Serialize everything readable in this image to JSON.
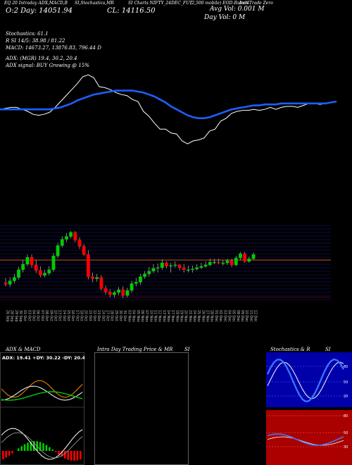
{
  "header": {
    "col1": "EQ 20 Intraday ADX,MACD,B",
    "col2": "SI,Stochastics,MR",
    "col3": "SI Charts NIFTY_24DEC_FUT",
    "col4": "(2,500 mobile) EOD-Ruben",
    "col5": "Ind4Trade Zero",
    "ltp_label": "Avg Vol: 0.001 M",
    "ltp_value": "CL: 14116.50",
    "open_line": "O:2 Day: 14051.94",
    "day_vol": "Day Vol: 0   M"
  },
  "indicators": {
    "stoch": "Stochastics: 61.1",
    "rsi": "R                        SI 14/5: 38.98  / 81.22",
    "macd": "MACD: 14673.27,  13876.83,  796.44   D",
    "adx": "ADX:                              (MGR) 19.4,  30.2,  20.4",
    "adx_signal": "ADX  signal:                          BUY Growing @ 15%"
  },
  "colors": {
    "up": "#00cc00",
    "down": "#ff0000",
    "ma": "#1e5eff",
    "price_line": "#ffffff",
    "grid": "#1a1a8a"
  },
  "chart_data": [
    {
      "type": "line",
      "title": "",
      "series": [
        {
          "values": [
            62,
            63,
            64,
            64,
            62,
            60,
            57,
            56,
            57,
            59,
            64,
            70,
            76,
            82,
            88,
            95,
            97,
            94,
            85,
            84,
            82,
            79,
            77,
            76,
            72,
            70,
            60,
            55,
            48,
            42,
            42,
            38,
            37,
            30,
            27,
            30,
            31,
            33,
            40,
            42,
            50,
            53,
            58,
            60,
            61,
            61,
            62,
            61,
            62,
            64,
            62,
            64,
            65,
            65,
            64,
            66,
            68,
            68,
            67,
            68,
            69,
            70
          ]
        },
        {
          "values": [
            62,
            62,
            62,
            62,
            62,
            62,
            62,
            62,
            62,
            62,
            63,
            64,
            66,
            68,
            71,
            73,
            75,
            77,
            78,
            79,
            80,
            81,
            81,
            81,
            81,
            80,
            79,
            77,
            75,
            72,
            69,
            65,
            62,
            59,
            56,
            54,
            53,
            53,
            54,
            56,
            58,
            60,
            62,
            63,
            64,
            65,
            66,
            66,
            67,
            67,
            67,
            68,
            68,
            68,
            68,
            68,
            68,
            68,
            68,
            68,
            69,
            70
          ]
        }
      ]
    },
    {
      "type": "candlestick",
      "categories": [
        "26 Sep",
        "28 Sep",
        "29 Sep",
        "30 Sep",
        "01 Oct",
        "03 Oct",
        "04 Oct",
        "06 Oct",
        "07 Oct",
        "08 Oct",
        "09 Oct",
        "10 Oct",
        "13 Oct",
        "14 Oct",
        "15 Oct",
        "16 Oct",
        "17 Oct",
        "18 Oct",
        "20 Oct",
        "21 Oct",
        "22 Oct",
        "23 Oct",
        "24 Oct",
        "27 Oct",
        "28 Oct",
        "29 Oct",
        "30 Oct",
        "31 Oct",
        "03 Nov",
        "04 Nov",
        "05 Nov",
        "06 Nov",
        "07 Nov",
        "10 Nov",
        "11 Nov",
        "12 Nov",
        "13 Nov",
        "14 Nov",
        "17 Nov",
        "18 Nov",
        "19 Nov",
        "20 Nov",
        "21 Nov",
        "24 Nov",
        "25 Nov",
        "26 Nov",
        "27 Nov",
        "28 Nov",
        "01 Dec",
        "02 Dec",
        "03 Dec",
        "04 Dec",
        "05 Dec",
        "08 Dec",
        "09 Dec",
        "10 Dec",
        "11 Dec",
        "12 Dec"
      ],
      "open": [
        13625,
        13615,
        13640,
        13665,
        13720,
        13760,
        13810,
        13755,
        13715,
        13680,
        13695,
        13720,
        13820,
        13895,
        13940,
        13960,
        13990,
        13935,
        13890,
        13830,
        13670,
        13655,
        13665,
        13585,
        13560,
        13540,
        13555,
        13575,
        13535,
        13570,
        13620,
        13630,
        13670,
        13690,
        13710,
        13730,
        13735,
        13770,
        13745,
        13750,
        13755,
        13735,
        13720,
        13720,
        13725,
        13735,
        13745,
        13755,
        13775,
        13775,
        13770,
        13770,
        13785,
        13755,
        13805,
        13835,
        13780,
        13800
      ],
      "close": [
        13615,
        13640,
        13665,
        13720,
        13760,
        13810,
        13755,
        13715,
        13680,
        13695,
        13720,
        13820,
        13895,
        13940,
        13960,
        13990,
        13935,
        13890,
        13830,
        13670,
        13655,
        13665,
        13585,
        13560,
        13540,
        13555,
        13575,
        13535,
        13570,
        13620,
        13630,
        13670,
        13690,
        13710,
        13730,
        13735,
        13770,
        13745,
        13750,
        13755,
        13735,
        13720,
        13720,
        13725,
        13735,
        13745,
        13755,
        13775,
        13775,
        13770,
        13770,
        13785,
        13755,
        13805,
        13835,
        13780,
        13800,
        13830
      ],
      "high": [
        13660,
        13665,
        13690,
        13740,
        13790,
        13830,
        13830,
        13790,
        13745,
        13720,
        13745,
        13840,
        13915,
        13960,
        13985,
        14000,
        14000,
        13955,
        13905,
        13860,
        13700,
        13690,
        13680,
        13605,
        13580,
        13570,
        13595,
        13600,
        13590,
        13640,
        13660,
        13690,
        13710,
        13740,
        13760,
        13765,
        13795,
        13780,
        13770,
        13780,
        13760,
        13760,
        13750,
        13750,
        13760,
        13770,
        13780,
        13800,
        13800,
        13800,
        13790,
        13800,
        13800,
        13820,
        13850,
        13850,
        13815,
        13845
      ],
      "low": [
        13600,
        13595,
        13620,
        13650,
        13700,
        13745,
        13735,
        13695,
        13665,
        13665,
        13680,
        13705,
        13805,
        13880,
        13920,
        13945,
        13920,
        13870,
        13820,
        13650,
        13630,
        13635,
        13570,
        13540,
        13520,
        13520,
        13535,
        13515,
        13520,
        13555,
        13600,
        13610,
        13655,
        13670,
        13695,
        13700,
        13720,
        13730,
        13700,
        13735,
        13715,
        13700,
        13700,
        13700,
        13715,
        13725,
        13735,
        13745,
        13760,
        13760,
        13750,
        13755,
        13740,
        13745,
        13790,
        13770,
        13770,
        13790
      ]
    },
    {
      "type": "line",
      "title": "ADX & MACD",
      "subtitle": "ADX: 19.41  +DY: 30.22  -DY: 20.4"
    },
    {
      "type": "line",
      "title": "Intra  Day Trading Price  & MR",
      "right_title": "SI"
    },
    {
      "type": "line",
      "title": "Stochastics & R",
      "right_title": "SI",
      "yticks_top": [
        "80",
        "50",
        "20"
      ],
      "yticks_bottom": [
        "80",
        "50",
        "30"
      ]
    }
  ]
}
